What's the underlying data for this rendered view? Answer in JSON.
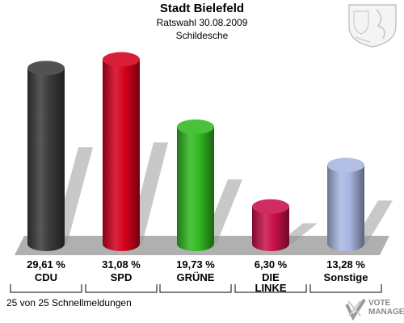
{
  "header": {
    "title": "Stadt Bielefeld",
    "subtitle": "Ratswahl 30.08.2009",
    "district": "Schildesche"
  },
  "chart_data": {
    "type": "bar",
    "title": "Stadt Bielefeld",
    "subtitle": "Ratswahl 30.08.2009 · Schildesche",
    "categories": [
      "CDU",
      "SPD",
      "GRÜNE",
      "DIE LINKE",
      "Sonstige"
    ],
    "values": [
      29.61,
      31.08,
      19.73,
      6.3,
      13.28
    ],
    "value_labels": [
      "29,61 %",
      "31,08 %",
      "19,73 %",
      "6,30 %",
      "13,28 %"
    ],
    "colors": [
      "#3a3a3a",
      "#d4001c",
      "#30b820",
      "#c8104a",
      "#a8b6e0"
    ],
    "unit": "%",
    "grid": false,
    "legend": "none"
  },
  "footer": {
    "status": "25 von 25 Schnellmeldungen",
    "logo_text": "VOTE MANAGER"
  }
}
